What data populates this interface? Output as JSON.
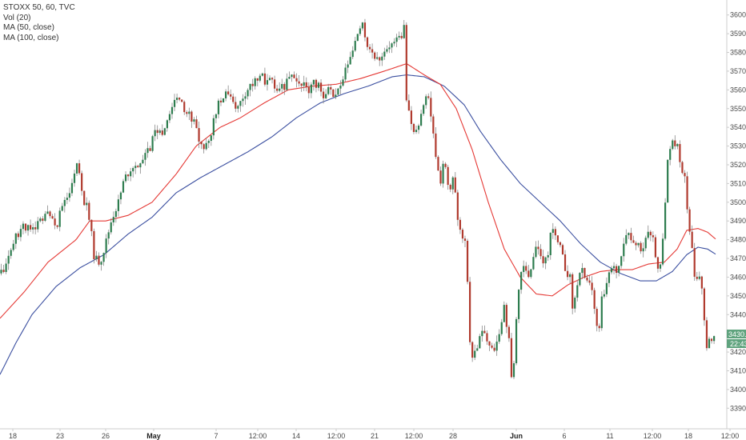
{
  "legend": {
    "title": "STOXX 50, 60, TVC",
    "line2": "Vol (20)",
    "line3": "MA (50, close)",
    "line4": "MA (100, close)"
  },
  "price_badge": {
    "price": "3430.4",
    "time": "22:43",
    "color": "#5fa37e"
  },
  "colors": {
    "up": "#2e7d4f",
    "down": "#b03a2e",
    "wick": "#888888",
    "ma50": "#e53935",
    "ma100": "#3b4fa0",
    "dot": "#555555",
    "axis": "#cccccc"
  },
  "chart_data": {
    "type": "candlestick",
    "ylim": [
      3385,
      3605
    ],
    "yticks": [
      3390,
      3400,
      3410,
      3420,
      3430,
      3440,
      3450,
      3460,
      3470,
      3480,
      3490,
      3500,
      3510,
      3520,
      3530,
      3540,
      3550,
      3560,
      3570,
      3580,
      3590,
      3600
    ],
    "xlim": [
      0,
      908
    ],
    "xticks": [
      {
        "x": 16,
        "label": "18",
        "bold": false
      },
      {
        "x": 75,
        "label": "23",
        "bold": false
      },
      {
        "x": 132,
        "label": "26",
        "bold": false
      },
      {
        "x": 192,
        "label": "May",
        "bold": true
      },
      {
        "x": 270,
        "label": "7",
        "bold": false
      },
      {
        "x": 322,
        "label": "12:00",
        "bold": false
      },
      {
        "x": 370,
        "label": "14",
        "bold": false
      },
      {
        "x": 420,
        "label": "12:00",
        "bold": false
      },
      {
        "x": 468,
        "label": "21",
        "bold": false
      },
      {
        "x": 517,
        "label": "12:00",
        "bold": false
      },
      {
        "x": 566,
        "label": "28",
        "bold": false
      },
      {
        "x": 645,
        "label": "Jun",
        "bold": true
      },
      {
        "x": 705,
        "label": "6",
        "bold": false
      },
      {
        "x": 762,
        "label": "11",
        "bold": false
      },
      {
        "x": 815,
        "label": "12:00",
        "bold": false
      },
      {
        "x": 860,
        "label": "18",
        "bold": false
      },
      {
        "x": 912,
        "label": "12:00",
        "bold": false
      }
    ],
    "series_anchors": [
      [
        0,
        3462
      ],
      [
        10,
        3470
      ],
      [
        20,
        3482
      ],
      [
        30,
        3488
      ],
      [
        40,
        3484
      ],
      [
        50,
        3490
      ],
      [
        60,
        3493
      ],
      [
        70,
        3487
      ],
      [
        80,
        3500
      ],
      [
        90,
        3510
      ],
      [
        97,
        3520
      ],
      [
        105,
        3500
      ],
      [
        112,
        3490
      ],
      [
        118,
        3470
      ],
      [
        125,
        3468
      ],
      [
        132,
        3478
      ],
      [
        140,
        3492
      ],
      [
        148,
        3500
      ],
      [
        155,
        3512
      ],
      [
        163,
        3518
      ],
      [
        172,
        3520
      ],
      [
        180,
        3525
      ],
      [
        188,
        3530
      ],
      [
        195,
        3538
      ],
      [
        203,
        3538
      ],
      [
        210,
        3544
      ],
      [
        217,
        3555
      ],
      [
        224,
        3554
      ],
      [
        231,
        3550
      ],
      [
        238,
        3543
      ],
      [
        245,
        3540
      ],
      [
        252,
        3528
      ],
      [
        260,
        3532
      ],
      [
        268,
        3545
      ],
      [
        275,
        3555
      ],
      [
        282,
        3560
      ],
      [
        290,
        3555
      ],
      [
        297,
        3550
      ],
      [
        305,
        3558
      ],
      [
        312,
        3562
      ],
      [
        318,
        3566
      ],
      [
        325,
        3568
      ],
      [
        332,
        3563
      ],
      [
        340,
        3565
      ],
      [
        347,
        3560
      ],
      [
        355,
        3562
      ],
      [
        362,
        3567
      ],
      [
        370,
        3563
      ],
      [
        378,
        3563
      ],
      [
        385,
        3560
      ],
      [
        392,
        3563
      ],
      [
        398,
        3562
      ],
      [
        405,
        3557
      ],
      [
        412,
        3560
      ],
      [
        418,
        3556
      ],
      [
        425,
        3562
      ],
      [
        432,
        3570
      ],
      [
        440,
        3580
      ],
      [
        447,
        3590
      ],
      [
        452,
        3595
      ],
      [
        458,
        3585
      ],
      [
        465,
        3580
      ],
      [
        472,
        3577
      ],
      [
        480,
        3578
      ],
      [
        487,
        3582
      ],
      [
        494,
        3585
      ],
      [
        500,
        3590
      ],
      [
        505,
        3594
      ],
      [
        508,
        3552
      ],
      [
        512,
        3545
      ],
      [
        518,
        3535
      ],
      [
        524,
        3540
      ],
      [
        530,
        3555
      ],
      [
        534,
        3558
      ],
      [
        538,
        3545
      ],
      [
        542,
        3533
      ],
      [
        546,
        3520
      ],
      [
        550,
        3510
      ],
      [
        555,
        3525
      ],
      [
        558,
        3510
      ],
      [
        562,
        3505
      ],
      [
        566,
        3512
      ],
      [
        570,
        3500
      ],
      [
        574,
        3485
      ],
      [
        578,
        3480
      ],
      [
        583,
        3478
      ],
      [
        586,
        3425
      ],
      [
        590,
        3418
      ],
      [
        595,
        3422
      ],
      [
        600,
        3430
      ],
      [
        606,
        3428
      ],
      [
        612,
        3425
      ],
      [
        618,
        3423
      ],
      [
        624,
        3432
      ],
      [
        630,
        3445
      ],
      [
        636,
        3425
      ],
      [
        640,
        3400
      ],
      [
        644,
        3430
      ],
      [
        648,
        3455
      ],
      [
        654,
        3465
      ],
      [
        660,
        3460
      ],
      [
        666,
        3470
      ],
      [
        672,
        3478
      ],
      [
        678,
        3468
      ],
      [
        684,
        3470
      ],
      [
        690,
        3490
      ],
      [
        694,
        3480
      ],
      [
        700,
        3475
      ],
      [
        706,
        3465
      ],
      [
        712,
        3460
      ],
      [
        716,
        3440
      ],
      [
        720,
        3455
      ],
      [
        726,
        3465
      ],
      [
        732,
        3455
      ],
      [
        738,
        3460
      ],
      [
        744,
        3438
      ],
      [
        748,
        3428
      ],
      [
        752,
        3450
      ],
      [
        756,
        3448
      ],
      [
        760,
        3462
      ],
      [
        766,
        3465
      ],
      [
        772,
        3463
      ],
      [
        778,
        3478
      ],
      [
        784,
        3485
      ],
      [
        790,
        3480
      ],
      [
        796,
        3478
      ],
      [
        802,
        3475
      ],
      [
        808,
        3482
      ],
      [
        814,
        3485
      ],
      [
        820,
        3465
      ],
      [
        826,
        3468
      ],
      [
        830,
        3490
      ],
      [
        834,
        3520
      ],
      [
        840,
        3535
      ],
      [
        846,
        3530
      ],
      [
        850,
        3517
      ],
      [
        856,
        3514
      ],
      [
        860,
        3488
      ],
      [
        864,
        3480
      ],
      [
        868,
        3460
      ],
      [
        874,
        3458
      ],
      [
        878,
        3455
      ],
      [
        882,
        3420
      ],
      [
        886,
        3425
      ],
      [
        890,
        3428
      ],
      [
        895,
        3430
      ]
    ],
    "ma50_anchors": [
      [
        0,
        3438
      ],
      [
        30,
        3452
      ],
      [
        60,
        3468
      ],
      [
        95,
        3480
      ],
      [
        112,
        3490
      ],
      [
        132,
        3490
      ],
      [
        160,
        3493
      ],
      [
        190,
        3500
      ],
      [
        220,
        3515
      ],
      [
        245,
        3530
      ],
      [
        275,
        3540
      ],
      [
        300,
        3545
      ],
      [
        330,
        3553
      ],
      [
        360,
        3560
      ],
      [
        390,
        3562
      ],
      [
        420,
        3563
      ],
      [
        450,
        3566
      ],
      [
        480,
        3570
      ],
      [
        508,
        3574
      ],
      [
        530,
        3568
      ],
      [
        550,
        3563
      ],
      [
        570,
        3550
      ],
      [
        590,
        3528
      ],
      [
        610,
        3500
      ],
      [
        630,
        3475
      ],
      [
        650,
        3460
      ],
      [
        670,
        3451
      ],
      [
        690,
        3450
      ],
      [
        710,
        3456
      ],
      [
        730,
        3460
      ],
      [
        750,
        3463
      ],
      [
        770,
        3464
      ],
      [
        790,
        3464
      ],
      [
        810,
        3467
      ],
      [
        830,
        3468
      ],
      [
        846,
        3475
      ],
      [
        858,
        3485
      ],
      [
        872,
        3486
      ],
      [
        884,
        3484
      ],
      [
        895,
        3480
      ]
    ],
    "ma100_anchors": [
      [
        0,
        3408
      ],
      [
        20,
        3425
      ],
      [
        40,
        3440
      ],
      [
        70,
        3455
      ],
      [
        100,
        3465
      ],
      [
        130,
        3472
      ],
      [
        160,
        3483
      ],
      [
        190,
        3492
      ],
      [
        220,
        3505
      ],
      [
        250,
        3513
      ],
      [
        280,
        3520
      ],
      [
        310,
        3527
      ],
      [
        340,
        3535
      ],
      [
        370,
        3545
      ],
      [
        400,
        3553
      ],
      [
        430,
        3558
      ],
      [
        460,
        3562
      ],
      [
        490,
        3567
      ],
      [
        508,
        3568
      ],
      [
        530,
        3567
      ],
      [
        555,
        3562
      ],
      [
        580,
        3552
      ],
      [
        600,
        3538
      ],
      [
        625,
        3523
      ],
      [
        650,
        3510
      ],
      [
        675,
        3500
      ],
      [
        700,
        3490
      ],
      [
        725,
        3478
      ],
      [
        750,
        3468
      ],
      [
        775,
        3462
      ],
      [
        800,
        3458
      ],
      [
        820,
        3458
      ],
      [
        840,
        3463
      ],
      [
        858,
        3472
      ],
      [
        872,
        3476
      ],
      [
        884,
        3475
      ],
      [
        895,
        3472
      ]
    ],
    "dotted_segment": {
      "x1": 193,
      "x2": 210,
      "y": 3538
    },
    "last_price": 3430.4
  }
}
